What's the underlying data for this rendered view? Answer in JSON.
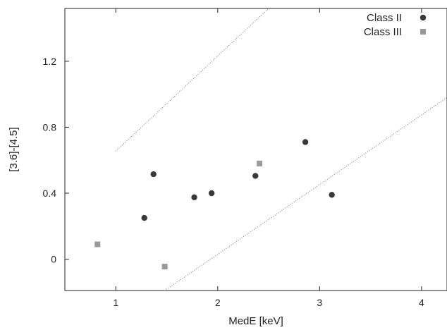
{
  "chart_data": {
    "type": "scatter",
    "xlabel": "MedE [keV]",
    "ylabel": "[3.6]-[4.5]",
    "xlim": [
      0.5,
      4.25
    ],
    "ylim": [
      -0.19,
      1.52
    ],
    "xticks": [
      1,
      2,
      3,
      4
    ],
    "xtick_labels": [
      "1",
      "2",
      "3",
      "4"
    ],
    "yticks": [
      0,
      0.4,
      0.8,
      1.2
    ],
    "ytick_labels": [
      "0",
      "0.4",
      "0.8",
      "1.2"
    ],
    "grid": false,
    "legend_position": "top-right",
    "series": [
      {
        "name": "Class II",
        "marker": "circle",
        "color": "#3a3a3a",
        "points": [
          {
            "x": 1.28,
            "y": 0.25
          },
          {
            "x": 1.37,
            "y": 0.515
          },
          {
            "x": 1.77,
            "y": 0.375
          },
          {
            "x": 1.94,
            "y": 0.4
          },
          {
            "x": 2.37,
            "y": 0.505
          },
          {
            "x": 2.86,
            "y": 0.71
          },
          {
            "x": 3.12,
            "y": 0.39
          }
        ]
      },
      {
        "name": "Class III",
        "marker": "square",
        "color": "#999999",
        "points": [
          {
            "x": 0.82,
            "y": 0.09
          },
          {
            "x": 1.48,
            "y": -0.045
          },
          {
            "x": 2.41,
            "y": 0.58
          }
        ]
      }
    ],
    "reference_lines": [
      {
        "style": "dotted",
        "color": "#777777",
        "x1": 1.0,
        "y1": 0.655,
        "x2": 2.5,
        "y2": 1.52
      },
      {
        "style": "dotted",
        "color": "#777777",
        "x1": 1.48,
        "y1": -0.19,
        "x2": 4.25,
        "y2": 0.98
      }
    ]
  }
}
